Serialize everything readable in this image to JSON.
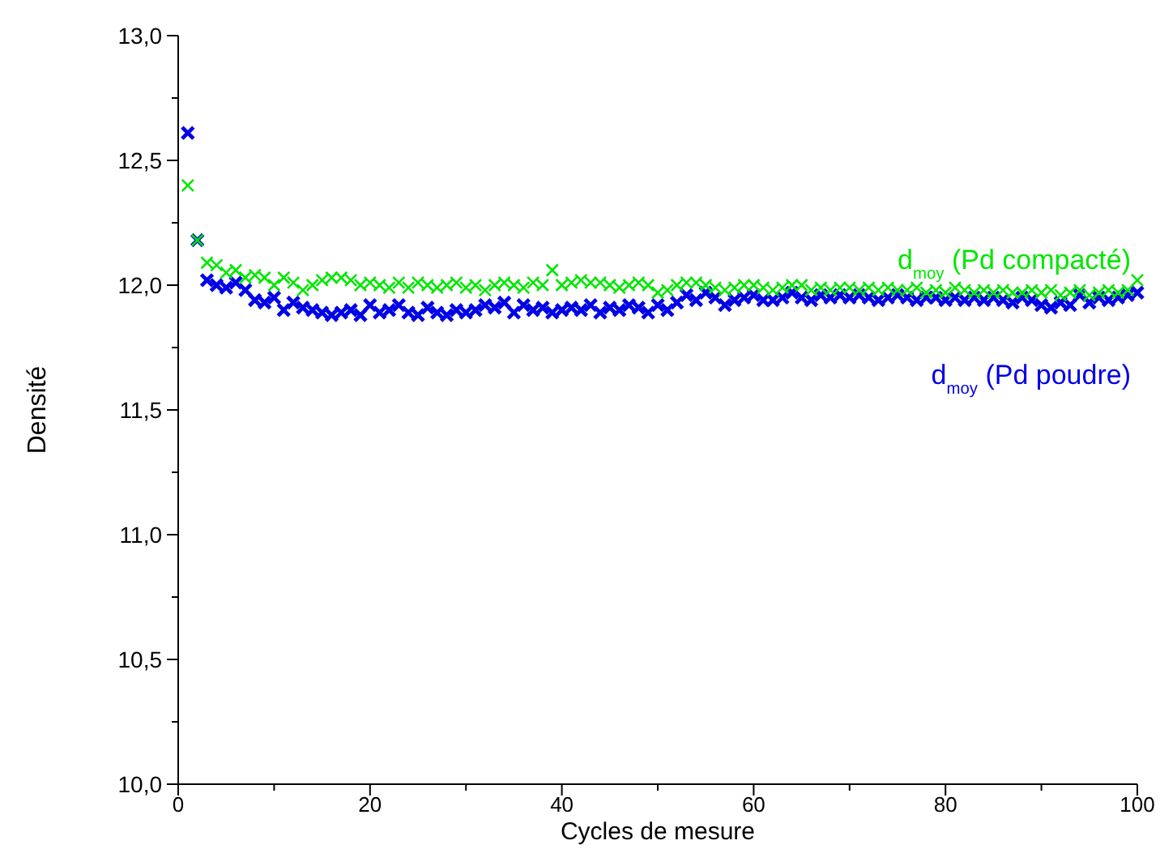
{
  "chart_data": {
    "type": "scatter",
    "xlabel": "Cycles de mesure",
    "ylabel": "Densité",
    "x": [
      1,
      2,
      3,
      4,
      5,
      6,
      7,
      8,
      9,
      10,
      11,
      12,
      13,
      14,
      15,
      16,
      17,
      18,
      19,
      20,
      21,
      22,
      23,
      24,
      25,
      26,
      27,
      28,
      29,
      30,
      31,
      32,
      33,
      34,
      35,
      36,
      37,
      38,
      39,
      40,
      41,
      42,
      43,
      44,
      45,
      46,
      47,
      48,
      49,
      50,
      51,
      52,
      53,
      54,
      55,
      56,
      57,
      58,
      59,
      60,
      61,
      62,
      63,
      64,
      65,
      66,
      67,
      68,
      69,
      70,
      71,
      72,
      73,
      74,
      75,
      76,
      77,
      78,
      79,
      80,
      81,
      82,
      83,
      84,
      85,
      86,
      87,
      88,
      89,
      90,
      91,
      92,
      93,
      94,
      95,
      96,
      97,
      98,
      99,
      100
    ],
    "xlim": [
      0,
      100
    ],
    "xticks": [
      0,
      {
        "value": 10,
        "label": null
      },
      20,
      {
        "value": 30,
        "label": null
      },
      40,
      {
        "value": 50,
        "label": null
      },
      60,
      {
        "value": 70,
        "label": null
      },
      80,
      {
        "value": 90,
        "label": null
      },
      100
    ],
    "ylim": [
      10,
      13
    ],
    "yticks": [
      {
        "value": 10,
        "label": "10,0"
      },
      {
        "value": 10.25,
        "label": null
      },
      {
        "value": 10.5,
        "label": "10,5"
      },
      {
        "value": 10.75,
        "label": null
      },
      {
        "value": 11,
        "label": "11,0"
      },
      {
        "value": 11.25,
        "label": null
      },
      {
        "value": 11.5,
        "label": "11,5"
      },
      {
        "value": 11.75,
        "label": null
      },
      {
        "value": 12,
        "label": "12,0"
      },
      {
        "value": 12.25,
        "label": null
      },
      {
        "value": 12.5,
        "label": "12,5"
      },
      {
        "value": 12.75,
        "label": null
      },
      {
        "value": 13,
        "label": "13,0"
      }
    ],
    "marker": "cross",
    "legend": "right",
    "grid": false,
    "series": [
      {
        "name": "d$_{moy}$ (Pd compacté)",
        "color": "#00e600",
        "values": [
          12.4,
          12.18,
          12.09,
          12.08,
          12.05,
          12.06,
          12.03,
          12.04,
          12.03,
          12.0,
          12.03,
          12.01,
          11.98,
          12.0,
          12.02,
          12.03,
          12.03,
          12.02,
          12.0,
          12.01,
          12.0,
          11.99,
          12.01,
          11.99,
          12.01,
          12.0,
          11.99,
          12.0,
          12.01,
          11.99,
          12.0,
          11.98,
          12.0,
          12.01,
          12.0,
          11.99,
          12.01,
          12.0,
          12.06,
          12.0,
          12.01,
          12.02,
          12.01,
          12.01,
          12.0,
          11.99,
          12.0,
          12.01,
          12.0,
          11.97,
          11.98,
          12.0,
          12.01,
          12.01,
          12.0,
          11.99,
          11.98,
          11.99,
          12.0,
          12.0,
          11.99,
          11.98,
          11.99,
          12.0,
          12.0,
          11.98,
          11.99,
          11.98,
          11.99,
          11.99,
          11.98,
          11.99,
          11.98,
          11.99,
          11.98,
          11.98,
          11.99,
          11.97,
          11.98,
          11.97,
          11.99,
          11.98,
          11.97,
          11.98,
          11.97,
          11.98,
          11.97,
          11.97,
          11.98,
          11.97,
          11.98,
          11.96,
          11.97,
          11.98,
          11.96,
          11.97,
          11.98,
          11.97,
          11.98,
          12.02
        ]
      },
      {
        "name": "d$_{moy}$ (Pd poudre)",
        "color": "#0000e6",
        "values": [
          12.61,
          12.18,
          12.02,
          12.0,
          11.99,
          12.01,
          11.98,
          11.94,
          11.93,
          11.95,
          11.9,
          11.93,
          11.91,
          11.9,
          11.89,
          11.88,
          11.89,
          11.9,
          11.88,
          11.92,
          11.89,
          11.9,
          11.92,
          11.89,
          11.88,
          11.91,
          11.89,
          11.88,
          11.9,
          11.89,
          11.9,
          11.92,
          11.91,
          11.93,
          11.89,
          11.92,
          11.9,
          11.91,
          11.89,
          11.9,
          11.91,
          11.9,
          11.92,
          11.89,
          11.91,
          11.9,
          11.92,
          11.91,
          11.89,
          11.92,
          11.9,
          11.93,
          11.96,
          11.94,
          11.97,
          11.95,
          11.92,
          11.94,
          11.95,
          11.96,
          11.94,
          11.94,
          11.95,
          11.97,
          11.95,
          11.94,
          11.96,
          11.95,
          11.96,
          11.95,
          11.96,
          11.95,
          11.94,
          11.95,
          11.96,
          11.95,
          11.94,
          11.95,
          11.95,
          11.94,
          11.95,
          11.94,
          11.95,
          11.94,
          11.95,
          11.94,
          11.93,
          11.95,
          11.94,
          11.92,
          11.91,
          11.93,
          11.92,
          11.96,
          11.93,
          11.95,
          11.94,
          11.95,
          11.96,
          11.97
        ]
      }
    ]
  }
}
